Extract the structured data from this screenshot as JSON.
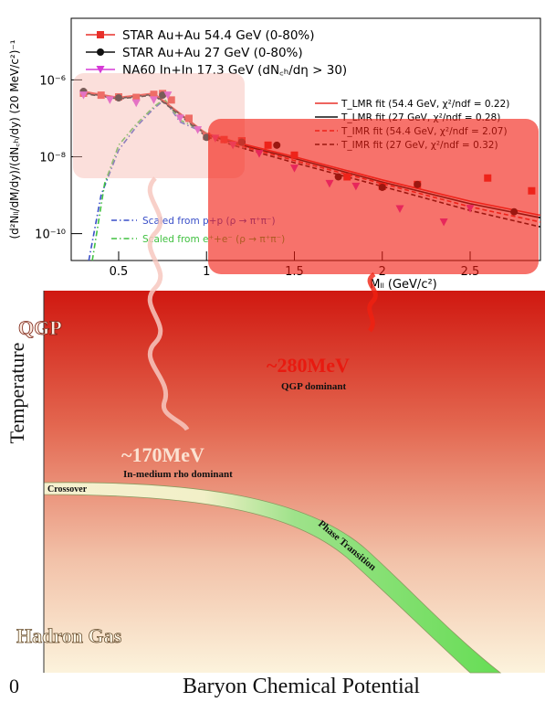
{
  "chart_data": {
    "type": "scatter",
    "x_label": "Mₗₗ (GeV/c²)",
    "y_label": "(d²Nₗₗ/dM/dy)/(dN꜀ₕ/dy) (20 MeV/c²)⁻¹",
    "log_y": true,
    "grid": false,
    "xlim": [
      0.23,
      2.9
    ],
    "xticks": [
      0.5,
      1,
      1.5,
      2,
      2.5
    ],
    "ylim": [
      2e-11,
      4e-05
    ],
    "yticks": [
      {
        "value": 1e-10,
        "label": "10⁻¹⁰"
      },
      {
        "value": 1e-08,
        "label": "10⁻⁸"
      },
      {
        "value": 1e-06,
        "label": "10⁻⁶"
      }
    ],
    "series": [
      {
        "name": "STAR Au+Au 54.4 GeV (0-80%)",
        "color": "#e8302a",
        "marker": "square",
        "x": [
          0.3,
          0.4,
          0.5,
          0.6,
          0.7,
          0.75,
          0.8,
          0.9,
          1.0,
          1.1,
          1.2,
          1.35,
          1.5,
          1.8,
          2.0,
          2.2,
          2.6,
          2.85
        ],
        "values": [
          4.5e-07,
          4e-07,
          3.6e-07,
          3.5e-07,
          4.2e-07,
          4.4e-07,
          3e-07,
          1e-07,
          3.4e-08,
          2.8e-08,
          2.6e-08,
          2e-08,
          1.1e-08,
          3e-09,
          1.7e-09,
          1.9e-09,
          2.8e-09,
          1.3e-09
        ]
      },
      {
        "name": "STAR Au+Au 27 GeV (0-80%)",
        "color": "#111111",
        "marker": "circle",
        "x": [
          0.3,
          0.5,
          0.75,
          1.0,
          1.2,
          1.4,
          1.75,
          2.0,
          2.2,
          2.75
        ],
        "values": [
          5e-07,
          3.4e-07,
          4e-07,
          3.2e-08,
          2.4e-08,
          2e-08,
          3e-09,
          1.6e-09,
          1.9e-09,
          3.7e-10
        ]
      },
      {
        "name": "NA60 In+In 17.3 GeV (dN꜀ₕ/dη > 30)",
        "color": "#d63ad6",
        "marker": "triangle-down",
        "x": [
          0.3,
          0.45,
          0.6,
          0.7,
          0.78,
          0.85,
          0.95,
          1.05,
          1.15,
          1.3,
          1.5,
          1.7,
          1.85,
          2.1,
          2.35,
          2.5
        ],
        "values": [
          4e-07,
          3e-07,
          2.5e-07,
          3e-07,
          4e-07,
          1e-07,
          5e-08,
          3e-08,
          2e-08,
          1.2e-08,
          5e-09,
          2e-09,
          1.7e-09,
          4.4e-10,
          2e-10,
          4.5e-10
        ]
      }
    ],
    "fits": [
      {
        "name": "T_LMR fit (54.4 GeV, χ²/ndf = 0.22)",
        "color": "#e8302a",
        "dash": "solid",
        "x": [
          0.3,
          0.5,
          0.7,
          0.8,
          1.0,
          1.2,
          1.5,
          2.0,
          2.5,
          2.9
        ],
        "values": [
          5e-07,
          3.5e-07,
          4.5e-07,
          2e-07,
          4e-08,
          2.2e-08,
          1e-08,
          2.5e-09,
          7e-10,
          3e-10
        ]
      },
      {
        "name": "T_LMR fit (27 GeV,   χ²/ndf = 0.28)",
        "color": "#111111",
        "dash": "solid",
        "x": [
          0.3,
          0.5,
          0.7,
          0.8,
          1.0,
          1.2,
          1.5,
          2.0,
          2.5,
          2.9
        ],
        "values": [
          4.6e-07,
          3.3e-07,
          4.2e-07,
          1.9e-07,
          3.7e-08,
          2e-08,
          9e-09,
          2.2e-09,
          6e-10,
          2.6e-10
        ]
      },
      {
        "name": "T_IMR fit (54.4 GeV, χ²/ndf = 2.07)",
        "color": "#e8302a",
        "dash": "dashed",
        "x": [
          0.3,
          0.5,
          0.7,
          0.8,
          1.0,
          1.2,
          1.5,
          2.0,
          2.5,
          2.9
        ],
        "values": [
          4.8e-07,
          3.4e-07,
          4.3e-07,
          1.9e-07,
          3.6e-08,
          1.9e-08,
          8e-09,
          2e-09,
          5e-10,
          2e-10
        ]
      },
      {
        "name": "T_IMR fit (27 GeV,   χ²/ndf = 0.32)",
        "color": "#111111",
        "dash": "dashed",
        "x": [
          0.3,
          0.5,
          0.7,
          0.8,
          1.0,
          1.2,
          1.5,
          2.0,
          2.5,
          2.9
        ],
        "values": [
          4.4e-07,
          3.2e-07,
          4e-07,
          1.8e-07,
          3.3e-08,
          1.7e-08,
          7e-09,
          1.7e-09,
          4e-10,
          1.5e-10
        ]
      }
    ],
    "references": [
      {
        "name": "Scaled from p+p (ρ → π⁺π⁻)",
        "color": "#3a4fc8",
        "dash": "dashdot",
        "x": [
          0.33,
          0.4,
          0.5,
          0.6,
          0.7,
          0.76,
          0.85,
          1.0
        ],
        "values": [
          2e-11,
          1e-09,
          1.5e-08,
          6e-08,
          1.8e-07,
          3e-07,
          8e-08,
          4e-08
        ]
      },
      {
        "name": "Scaled from e⁺+e⁻ (ρ → π⁺π⁻)",
        "color": "#40c040",
        "dash": "dashdot",
        "x": [
          0.35,
          0.42,
          0.5,
          0.6,
          0.7,
          0.76,
          0.85,
          1.0
        ],
        "values": [
          2e-11,
          2e-09,
          2e-08,
          7e-08,
          2e-07,
          3.2e-07,
          9e-08,
          4.2e-08
        ]
      }
    ]
  },
  "diagram": {
    "qgp": "QGP",
    "t_high": "~280MeV",
    "qgp_dominant": "QGP dominant",
    "y_axis": "Temperature",
    "t_low": "~170MeV",
    "rho_dominant": "In-medium rho dominant",
    "crossover": "Crossover",
    "phase_transition": "Phase Transition",
    "hadron_gas": "Hadron Gas",
    "origin": "0",
    "x_axis": "Baryon Chemical Potential"
  }
}
